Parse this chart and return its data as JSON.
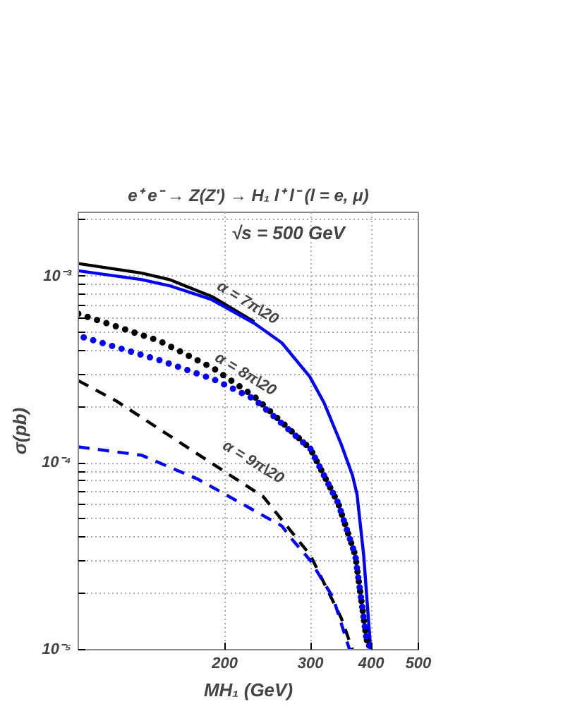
{
  "chart_data": {
    "type": "line",
    "title": "e⁺ e⁻ → Z(Z') → H₁ l⁺ l⁻ (l = e, μ)",
    "xlabel": "MH₁ (GeV)",
    "ylabel": "σ(pb)",
    "log": "xy",
    "grid": true,
    "xlim": [
      100,
      500
    ],
    "ylim": [
      1e-05,
      0.0022
    ],
    "xticks": [
      200,
      300,
      400,
      500
    ],
    "yticks": [
      {
        "value": 1e-05,
        "label": "10⁻⁵"
      },
      {
        "value": 2e-05,
        "label": null
      },
      {
        "value": 3e-05,
        "label": null
      },
      {
        "value": 4e-05,
        "label": null
      },
      {
        "value": 5e-05,
        "label": null
      },
      {
        "value": 6e-05,
        "label": null
      },
      {
        "value": 7e-05,
        "label": null
      },
      {
        "value": 8e-05,
        "label": null
      },
      {
        "value": 9e-05,
        "label": null
      },
      {
        "value": 0.0001,
        "label": "10⁻⁴"
      },
      {
        "value": 0.0002,
        "label": null
      },
      {
        "value": 0.0003,
        "label": null
      },
      {
        "value": 0.0004,
        "label": null
      },
      {
        "value": 0.0005,
        "label": null
      },
      {
        "value": 0.0006,
        "label": null
      },
      {
        "value": 0.0007,
        "label": null
      },
      {
        "value": 0.0008,
        "label": null
      },
      {
        "value": 0.0009,
        "label": null
      },
      {
        "value": 0.001,
        "label": "10⁻³"
      },
      {
        "value": 0.002,
        "label": null
      }
    ],
    "series": [
      {
        "color": "#000000",
        "line_style": "solid",
        "x": [
          100,
          135,
          154,
          188,
          230
        ],
        "values": [
          0.00117,
          0.00104,
          0.00096,
          0.00078,
          0.00057
        ]
      },
      {
        "color": "#0000ff",
        "line_style": "solid",
        "x": [
          100,
          135,
          154,
          188,
          230,
          262,
          299,
          320,
          347,
          366,
          374,
          386,
          399
        ],
        "values": [
          0.00107,
          0.00096,
          0.00089,
          0.00075,
          0.00056,
          0.00044,
          0.00029,
          0.00021,
          0.000126,
          8.6e-05,
          6.8e-05,
          3.2e-05,
          1e-05
        ]
      },
      {
        "color": "#000000",
        "line_style": "dotted",
        "x": [
          100,
          147,
          190,
          230,
          300,
          342,
          371,
          391,
          396
        ],
        "values": [
          0.00063,
          0.00045,
          0.00032,
          0.000227,
          0.000119,
          6.1e-05,
          3.2e-05,
          1.15e-05,
          1e-05
        ]
      },
      {
        "color": "#0000ff",
        "line_style": "dotted",
        "x": [
          100,
          147,
          190,
          230,
          300,
          342,
          371,
          391,
          399
        ],
        "values": [
          0.00048,
          0.000355,
          0.00028,
          0.00022,
          0.000119,
          6.1e-05,
          3.2e-05,
          1.15e-05,
          1e-05
        ]
      },
      {
        "color": "#000000",
        "line_style": "dashed",
        "x": [
          100,
          120,
          201,
          240,
          300,
          347,
          366
        ],
        "values": [
          0.000276,
          0.000214,
          8.9e-05,
          6.6e-05,
          3.2e-05,
          1.48e-05,
          1e-05
        ]
      },
      {
        "color": "#0000ff",
        "line_style": "dashed",
        "x": [
          100,
          135,
          176,
          262,
          275,
          300,
          334,
          361
        ],
        "values": [
          0.000122,
          0.00011,
          8.2e-05,
          4.6e-05,
          3.9e-05,
          3e-05,
          1.9e-05,
          1e-05
        ]
      }
    ],
    "annotations": [
      "√s = 500 GeV",
      {
        "text": "α = 7π\\20",
        "x": 190,
        "y": 0.00082
      },
      {
        "text": "α = 8π\\20",
        "x": 188,
        "y": 0.00034
      },
      "α = 9π\\20"
    ]
  }
}
